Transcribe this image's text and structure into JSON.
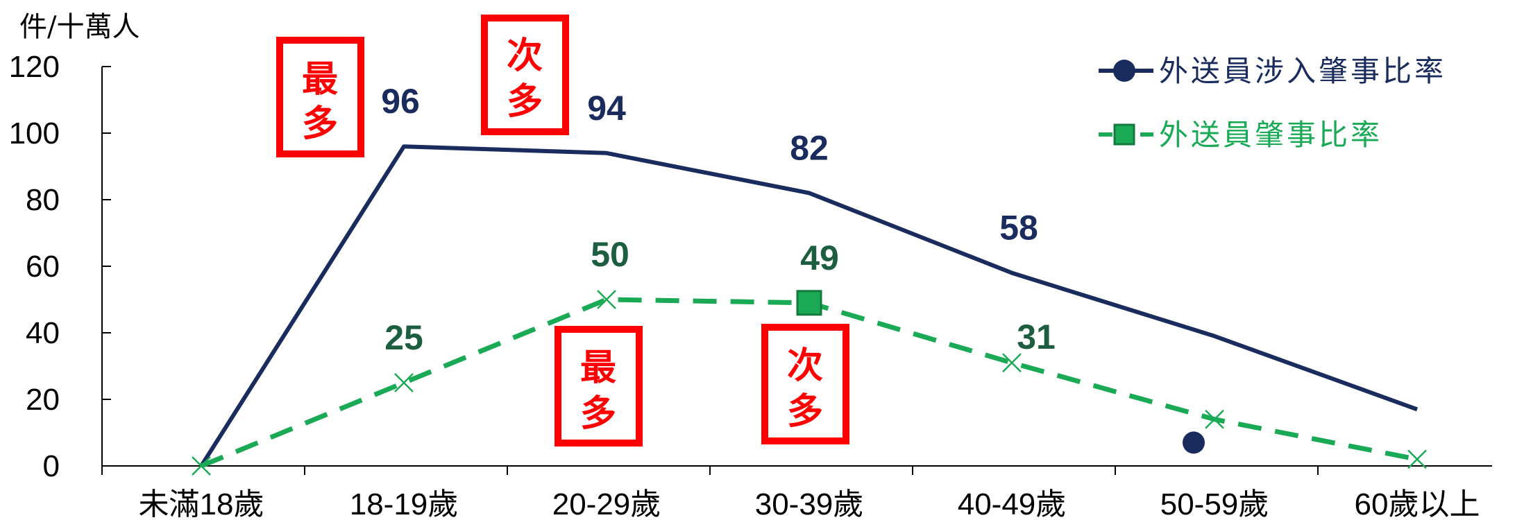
{
  "chart_data": {
    "type": "line",
    "ylabel": "件/十萬人",
    "ylim": [
      0,
      120
    ],
    "yticks": [
      0,
      20,
      40,
      60,
      80,
      100,
      120
    ],
    "categories": [
      "未滿18歲",
      "18-19歲",
      "20-29歲",
      "30-39歲",
      "40-49歲",
      "50-59歲",
      "60歲以上"
    ],
    "legend_position": "top-right",
    "series": [
      {
        "name": "外送員涉入肇事比率",
        "color": "#1a2b5e",
        "style": "solid",
        "marker": "circle",
        "values": [
          0,
          96,
          94,
          82,
          58,
          39,
          17
        ],
        "labels": [
          "",
          "96",
          "94",
          "82",
          "58",
          "",
          ""
        ]
      },
      {
        "name": "外送員肇事比率",
        "color": "#1aaa55",
        "label_color": "#1e5e40",
        "style": "dashed",
        "marker": "square",
        "values": [
          0,
          25,
          50,
          49,
          31,
          14,
          2
        ],
        "labels": [
          "",
          "25",
          "50",
          "49",
          "31",
          "",
          ""
        ]
      }
    ],
    "annotations": [
      {
        "text": "最多",
        "series": 0
      },
      {
        "text": "次多",
        "series": 0
      },
      {
        "text": "最多",
        "series": 1
      },
      {
        "text": "次多",
        "series": 1
      }
    ]
  }
}
